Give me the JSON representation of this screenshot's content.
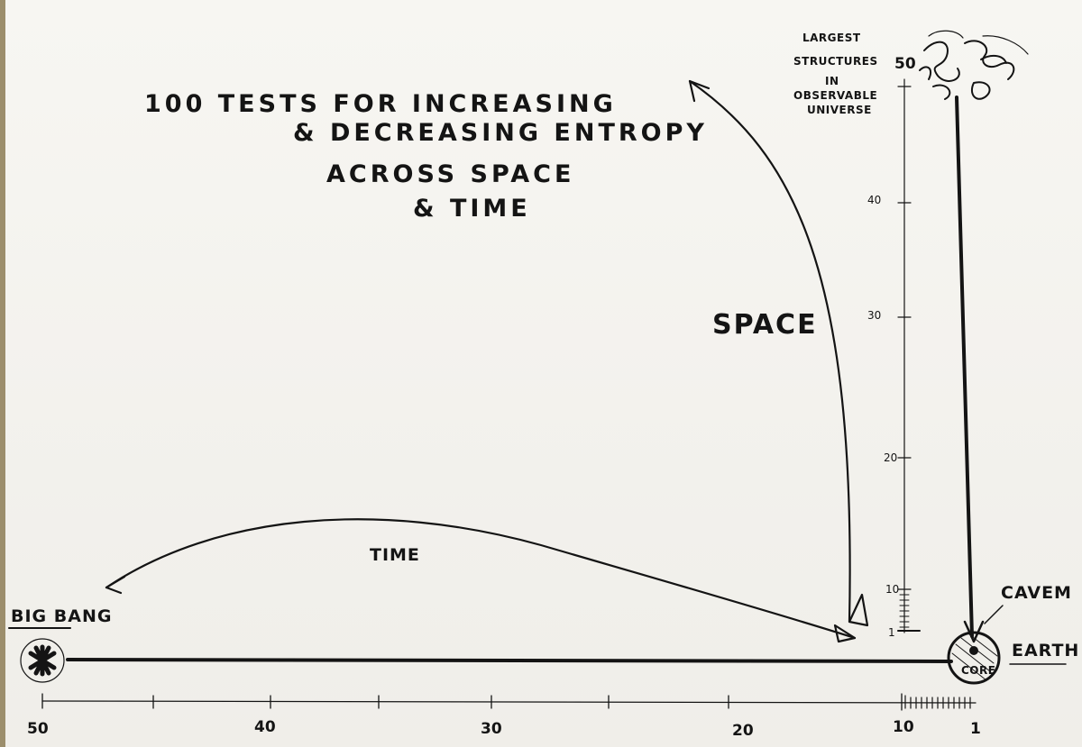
{
  "title_lines": [
    "100 TESTS FOR INCREASING",
    "& DECREASING ENTROPY",
    "ACROSS SPACE",
    "& TIME"
  ],
  "labels": {
    "big_bang": "BIG BANG",
    "time": "TIME",
    "space": "SPACE",
    "earth": "EARTH",
    "caveman": "CAVEM",
    "core": "CORE",
    "largest_structures": [
      "LARGEST",
      "STRUCTURES",
      "IN",
      "OBSERVABLE",
      "UNIVERSE"
    ]
  },
  "time_axis": {
    "ticks": [
      "50",
      "40",
      "30",
      "20",
      "10",
      "1"
    ]
  },
  "space_axis": {
    "ticks": [
      "50",
      "40",
      "30",
      "20",
      "10",
      "1"
    ]
  }
}
